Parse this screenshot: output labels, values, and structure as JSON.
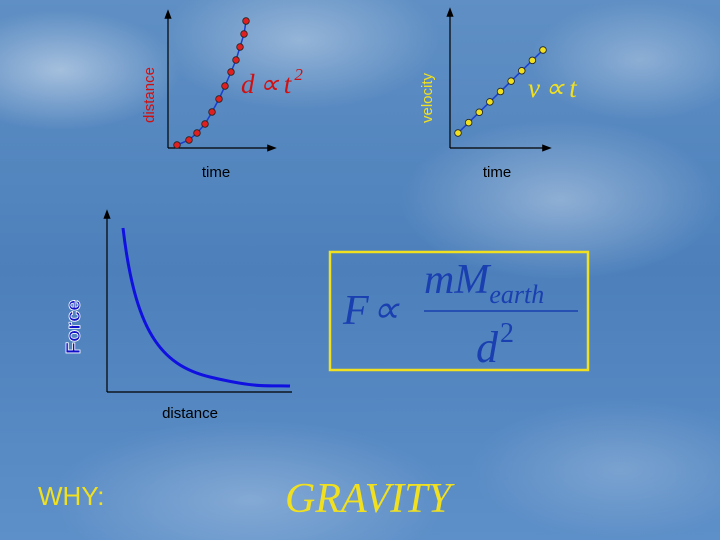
{
  "graphs": [
    {
      "y_label": "distance",
      "x_label": "time",
      "relation": {
        "lhs": "d",
        "symbol": "∝",
        "base": "t",
        "exponent": "2"
      }
    },
    {
      "y_label": "velocity",
      "x_label": "time",
      "relation": {
        "lhs": "v",
        "symbol": "∝",
        "rhs": "t"
      }
    },
    {
      "y_label": "Force",
      "x_label": "distance"
    }
  ],
  "formula": {
    "lhs": "F",
    "symbol": "∝",
    "numerator": "mM",
    "numerator_subscript": "earth",
    "denominator": "d",
    "denominator_exponent": "2"
  },
  "footer": {
    "left": "WHY:",
    "center": "GRAVITY"
  }
}
